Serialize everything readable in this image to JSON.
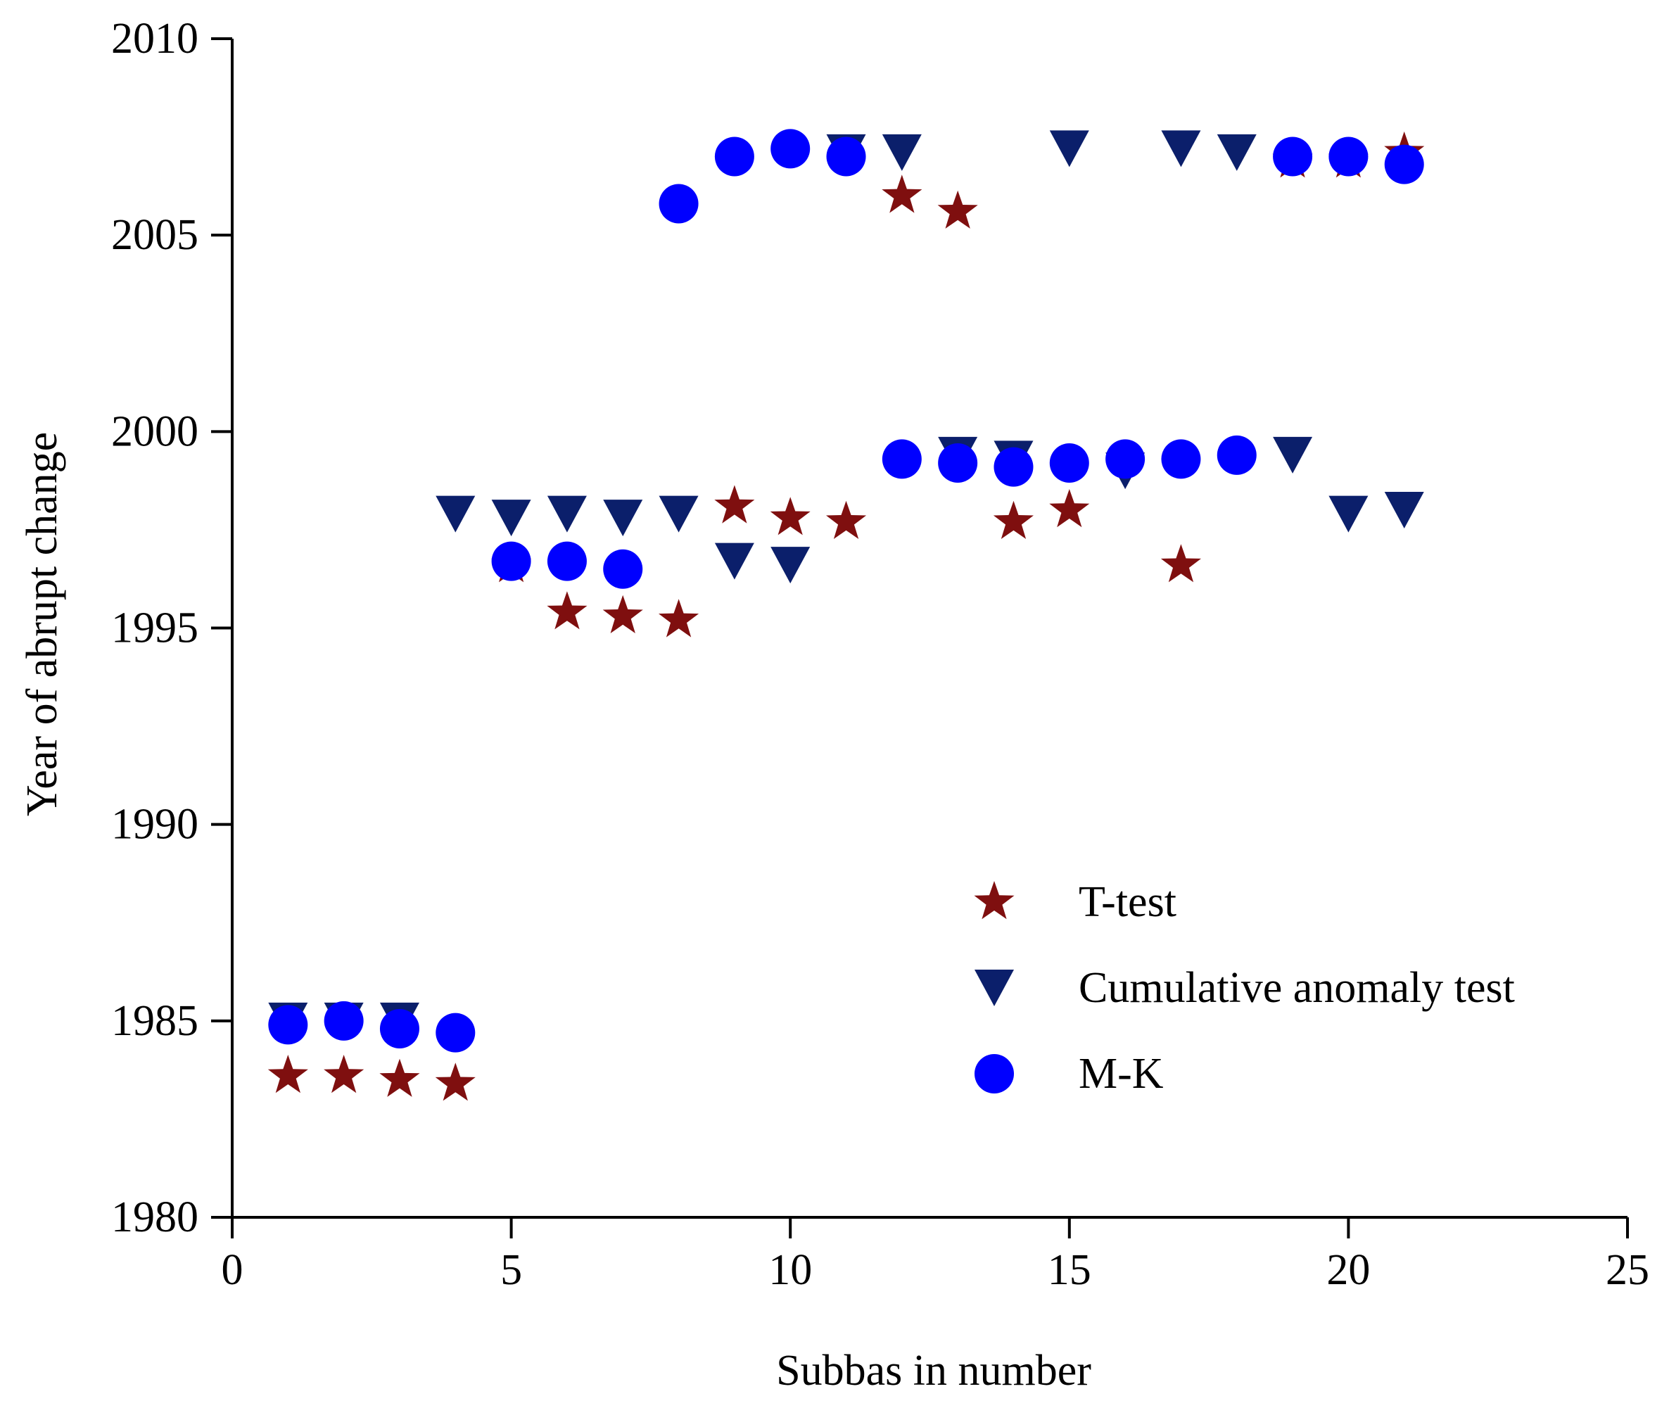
{
  "chart_data": {
    "type": "scatter",
    "title": "",
    "xlabel": "Subbas in number",
    "ylabel": "Year of abrupt change",
    "xlim": [
      0,
      25
    ],
    "ylim": [
      1980,
      2010
    ],
    "xticks": [
      0,
      5,
      10,
      15,
      20,
      25
    ],
    "yticks": [
      1980,
      1985,
      1990,
      1995,
      2000,
      2005,
      2010
    ],
    "grid": false,
    "legend_position": "right-center",
    "series": [
      {
        "name": "T-test",
        "marker": "star",
        "color": "#7f0f0f",
        "points": [
          [
            1,
            1983.6
          ],
          [
            2,
            1983.6
          ],
          [
            3,
            1983.5
          ],
          [
            4,
            1983.4
          ],
          [
            5,
            1996.6
          ],
          [
            6,
            1995.4
          ],
          [
            7,
            1995.3
          ],
          [
            8,
            1995.2
          ],
          [
            9,
            1998.1
          ],
          [
            10,
            1997.8
          ],
          [
            11,
            1997.7
          ],
          [
            12,
            2006.0
          ],
          [
            13,
            2005.6
          ],
          [
            14,
            1997.7
          ],
          [
            15,
            1998.0
          ],
          [
            17,
            1996.6
          ],
          [
            19,
            2006.9
          ],
          [
            20,
            2006.9
          ],
          [
            21,
            2007.1
          ]
        ]
      },
      {
        "name": "Cumulative anomaly test",
        "marker": "triangle-down",
        "color": "#0b1f6b",
        "points": [
          [
            1,
            1985.0
          ],
          [
            2,
            1985.0
          ],
          [
            3,
            1985.0
          ],
          [
            4,
            1997.9
          ],
          [
            5,
            1997.8
          ],
          [
            6,
            1997.9
          ],
          [
            7,
            1997.8
          ],
          [
            8,
            1997.9
          ],
          [
            9,
            1996.7
          ],
          [
            10,
            1996.6
          ],
          [
            11,
            2007.1
          ],
          [
            12,
            2007.1
          ],
          [
            13,
            1999.4
          ],
          [
            14,
            1999.3
          ],
          [
            15,
            2007.2
          ],
          [
            16,
            1999.0
          ],
          [
            17,
            2007.2
          ],
          [
            18,
            2007.1
          ],
          [
            19,
            1999.4
          ],
          [
            20,
            1997.9
          ],
          [
            21,
            1998.0
          ]
        ]
      },
      {
        "name": "M-K",
        "marker": "circle",
        "color": "#0000ff",
        "points": [
          [
            1,
            1984.9
          ],
          [
            2,
            1985.0
          ],
          [
            3,
            1984.8
          ],
          [
            4,
            1984.7
          ],
          [
            5,
            1996.7
          ],
          [
            6,
            1996.7
          ],
          [
            7,
            1996.5
          ],
          [
            8,
            2005.8
          ],
          [
            9,
            2007.0
          ],
          [
            10,
            2007.2
          ],
          [
            11,
            2007.0
          ],
          [
            12,
            1999.3
          ],
          [
            13,
            1999.2
          ],
          [
            14,
            1999.1
          ],
          [
            15,
            1999.2
          ],
          [
            16,
            1999.3
          ],
          [
            17,
            1999.3
          ],
          [
            18,
            1999.4
          ],
          [
            19,
            2007.0
          ],
          [
            20,
            2007.0
          ],
          [
            21,
            2006.8
          ]
        ]
      }
    ]
  }
}
